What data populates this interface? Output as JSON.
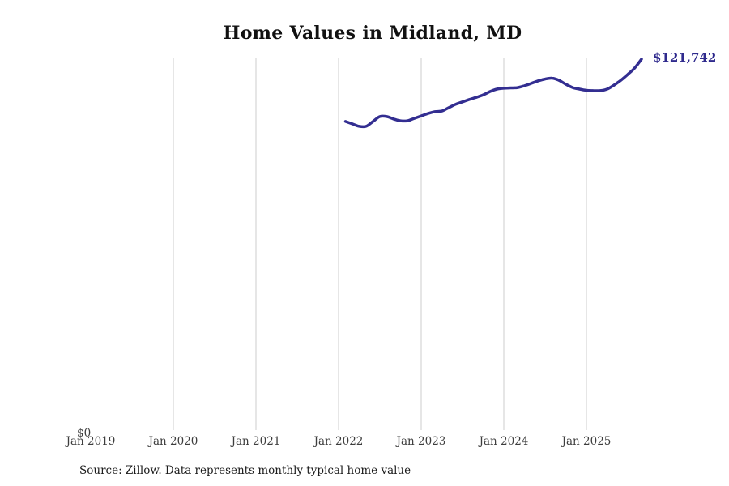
{
  "chart_data": {
    "type": "line",
    "title": "Home Values in Midland, MD",
    "series_name": "Monthly typical home value",
    "unit": "USD",
    "x_tick_labels": [
      "Jan 2019",
      "Jan 2020",
      "Jan 2021",
      "Jan 2022",
      "Jan 2023",
      "Jan 2024",
      "Jan 2025"
    ],
    "y_tick_labels": [
      "$0"
    ],
    "ylim": [
      0,
      122000
    ],
    "grid": "vertical-year-gridlines",
    "legend": "none",
    "final_value_label": "$121,742",
    "final_value": 121742,
    "months": [
      "2022-02",
      "2022-03",
      "2022-04",
      "2022-05",
      "2022-06",
      "2022-07",
      "2022-08",
      "2022-09",
      "2022-10",
      "2022-11",
      "2022-12",
      "2023-01",
      "2023-02",
      "2023-03",
      "2023-04",
      "2023-05",
      "2023-06",
      "2023-07",
      "2023-08",
      "2023-09",
      "2023-10",
      "2023-11",
      "2023-12",
      "2024-01",
      "2024-02",
      "2024-03",
      "2024-04",
      "2024-05",
      "2024-06",
      "2024-07",
      "2024-08",
      "2024-09",
      "2024-10",
      "2024-11",
      "2024-12",
      "2025-01",
      "2025-02",
      "2025-03",
      "2025-04",
      "2025-05",
      "2025-06",
      "2025-07",
      "2025-08",
      "2025-09"
    ],
    "values": [
      101300,
      100500,
      99700,
      99700,
      101300,
      102900,
      102900,
      102100,
      101500,
      101500,
      102300,
      103100,
      103900,
      104500,
      104700,
      105800,
      106900,
      107700,
      108500,
      109200,
      110000,
      111100,
      111900,
      112200,
      112300,
      112400,
      113000,
      113800,
      114600,
      115200,
      115500,
      114800,
      113500,
      112400,
      111900,
      111500,
      111400,
      111400,
      111900,
      113200,
      114800,
      116700,
      118800,
      121742
    ],
    "colors": {
      "line": "#332e91",
      "end_label": "#2f2a8d",
      "gridline": "#cccccc",
      "tick_text": "#3d3d3d",
      "title_text": "#111111",
      "source_text": "#1c1c1c",
      "background": "#ffffff"
    }
  },
  "source_note": "Source: Zillow. Data represents monthly typical home value"
}
